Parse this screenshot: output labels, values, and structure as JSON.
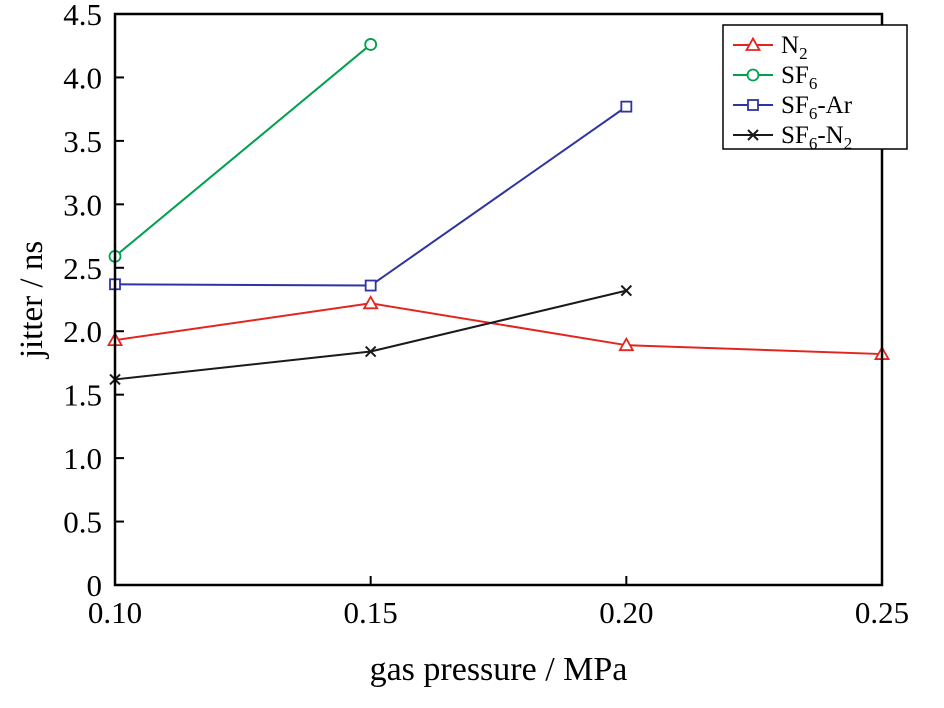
{
  "figure": {
    "background": "#ffffff",
    "axis_color": "#000000"
  },
  "chart_data": {
    "type": "line",
    "title": "",
    "xlabel": "gas pressure / MPa",
    "ylabel": "jitter / ns",
    "xlim": [
      0.1,
      0.25
    ],
    "ylim": [
      0,
      4.5
    ],
    "grid": false,
    "legend_position": "top-right",
    "x_ticks": [
      {
        "value": 0.1,
        "label": "0.10"
      },
      {
        "value": 0.15,
        "label": "0.15"
      },
      {
        "value": 0.2,
        "label": "0.20"
      },
      {
        "value": 0.25,
        "label": "0.25"
      }
    ],
    "y_ticks": [
      {
        "value": 0,
        "label": "0"
      },
      {
        "value": 0.5,
        "label": "0.5"
      },
      {
        "value": 1.0,
        "label": "1.0"
      },
      {
        "value": 1.5,
        "label": "1.5"
      },
      {
        "value": 2.0,
        "label": "2.0"
      },
      {
        "value": 2.5,
        "label": "2.5"
      },
      {
        "value": 3.0,
        "label": "3.0"
      },
      {
        "value": 3.5,
        "label": "3.5"
      },
      {
        "value": 4.0,
        "label": "4.0"
      },
      {
        "value": 4.5,
        "label": "4.5"
      }
    ],
    "series": [
      {
        "name": "N2",
        "label_parts": [
          {
            "text": "N"
          },
          {
            "text": "2",
            "sub": true
          }
        ],
        "color": "#e2261f",
        "marker": "triangle",
        "points": [
          [
            0.1,
            1.93
          ],
          [
            0.15,
            2.22
          ],
          [
            0.2,
            1.89
          ],
          [
            0.25,
            1.82
          ]
        ]
      },
      {
        "name": "SF6",
        "label_parts": [
          {
            "text": "SF"
          },
          {
            "text": "6",
            "sub": true
          }
        ],
        "color": "#00a04e",
        "marker": "circle",
        "points": [
          [
            0.1,
            2.59
          ],
          [
            0.15,
            4.26
          ]
        ]
      },
      {
        "name": "SF6-Ar",
        "label_parts": [
          {
            "text": "SF"
          },
          {
            "text": "6",
            "sub": true
          },
          {
            "text": "-Ar"
          }
        ],
        "color": "#2e35a0",
        "marker": "square",
        "points": [
          [
            0.1,
            2.37
          ],
          [
            0.15,
            2.36
          ],
          [
            0.2,
            3.77
          ]
        ]
      },
      {
        "name": "SF6-N2",
        "label_parts": [
          {
            "text": "SF"
          },
          {
            "text": "6",
            "sub": true
          },
          {
            "text": "-N"
          },
          {
            "text": "2",
            "sub": true
          }
        ],
        "color": "#1a1a1a",
        "marker": "x",
        "points": [
          [
            0.1,
            1.62
          ],
          [
            0.15,
            1.84
          ],
          [
            0.2,
            2.32
          ]
        ]
      }
    ]
  }
}
